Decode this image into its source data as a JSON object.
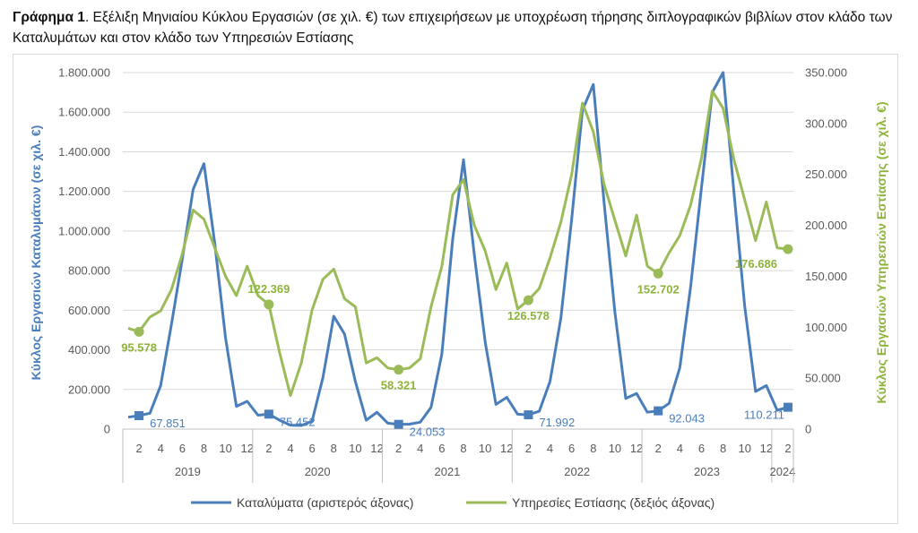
{
  "title": {
    "prefix": "Γράφημα 1",
    "text": ". Εξέλιξη Μηνιαίου Κύκλου Εργασιών (σε χιλ. €) των επιχειρήσεων με υποχρέωση τήρησης διπλογραφικών βιβλίων στον κλάδο των Καταλυμάτων και στον κλάδο των Υπηρεσιών Εστίασης"
  },
  "chart_data": {
    "type": "line",
    "ylabel_left": "Κύκλος Εργασιών Καταλυμάτων (σε χιλ. €)",
    "ylabel_right": "Κύκλος Εργασιών Υπηρεσιών Εστίασης (σε χιλ. €)",
    "ylim_left": [
      0,
      1800000
    ],
    "ylim_right": [
      0,
      350000
    ],
    "yticks_left": [
      "0",
      "200.000",
      "400.000",
      "600.000",
      "800.000",
      "1.000.000",
      "1.200.000",
      "1.400.000",
      "1.600.000",
      "1.800.000"
    ],
    "yticks_right": [
      "0",
      "50.000",
      "100.000",
      "150.000",
      "200.000",
      "250.000",
      "300.000",
      "350.000"
    ],
    "month_ticks": [
      "2",
      "4",
      "6",
      "8",
      "10",
      "12"
    ],
    "years": [
      "2019",
      "2020",
      "2021",
      "2022",
      "2023",
      "2024"
    ],
    "months_per_year": [
      12,
      12,
      12,
      12,
      12,
      2
    ],
    "grid": true,
    "legend_position": "bottom",
    "colors": {
      "blue": "#4a7ebb",
      "green": "#9bbb59"
    },
    "series": [
      {
        "name": "Καταλύματα (αριστερός άξονας)",
        "axis": "left",
        "color": "#4a7ebb",
        "values": [
          60000,
          67851,
          80000,
          220000,
          530000,
          860000,
          1210000,
          1340000,
          940000,
          460000,
          115000,
          140000,
          70000,
          75452,
          45000,
          20000,
          18000,
          40000,
          260000,
          570000,
          480000,
          240000,
          45000,
          85000,
          30000,
          24053,
          25000,
          35000,
          110000,
          380000,
          960000,
          1360000,
          880000,
          440000,
          125000,
          160000,
          75000,
          71992,
          90000,
          240000,
          560000,
          1060000,
          1610000,
          1740000,
          1140000,
          590000,
          155000,
          180000,
          85000,
          92043,
          130000,
          310000,
          720000,
          1220000,
          1700000,
          1800000,
          1200000,
          620000,
          190000,
          220000,
          95000,
          110211
        ],
        "labels": [
          {
            "index": 1,
            "text": "67.851"
          },
          {
            "index": 13,
            "text": "75.452"
          },
          {
            "index": 25,
            "text": "24.053"
          },
          {
            "index": 37,
            "text": "71.992"
          },
          {
            "index": 49,
            "text": "92.043"
          },
          {
            "index": 61,
            "text": "110.211"
          }
        ]
      },
      {
        "name": "Υπηρεσίες Εστίασης (δεξιός άξονας)",
        "axis": "right",
        "color": "#9bbb59",
        "values": [
          99000,
          95578,
          110000,
          116000,
          137000,
          172000,
          215000,
          206000,
          178000,
          150000,
          131000,
          160000,
          131000,
          122369,
          75000,
          33000,
          65000,
          117000,
          147000,
          157000,
          128000,
          120000,
          65000,
          70000,
          60000,
          58321,
          60000,
          69000,
          120000,
          160000,
          230000,
          245000,
          200000,
          175000,
          137000,
          163000,
          118000,
          126578,
          138000,
          168000,
          203000,
          250000,
          320000,
          292000,
          240000,
          205000,
          170000,
          210000,
          160000,
          152702,
          173000,
          190000,
          220000,
          266000,
          332000,
          315000,
          265000,
          225000,
          185000,
          223000,
          178000,
          176686
        ],
        "labels": [
          {
            "index": 1,
            "text": "95.578"
          },
          {
            "index": 13,
            "text": "122.369"
          },
          {
            "index": 25,
            "text": "58.321"
          },
          {
            "index": 37,
            "text": "126.578"
          },
          {
            "index": 49,
            "text": "152.702"
          },
          {
            "index": 61,
            "text": "176.686"
          }
        ]
      }
    ]
  }
}
